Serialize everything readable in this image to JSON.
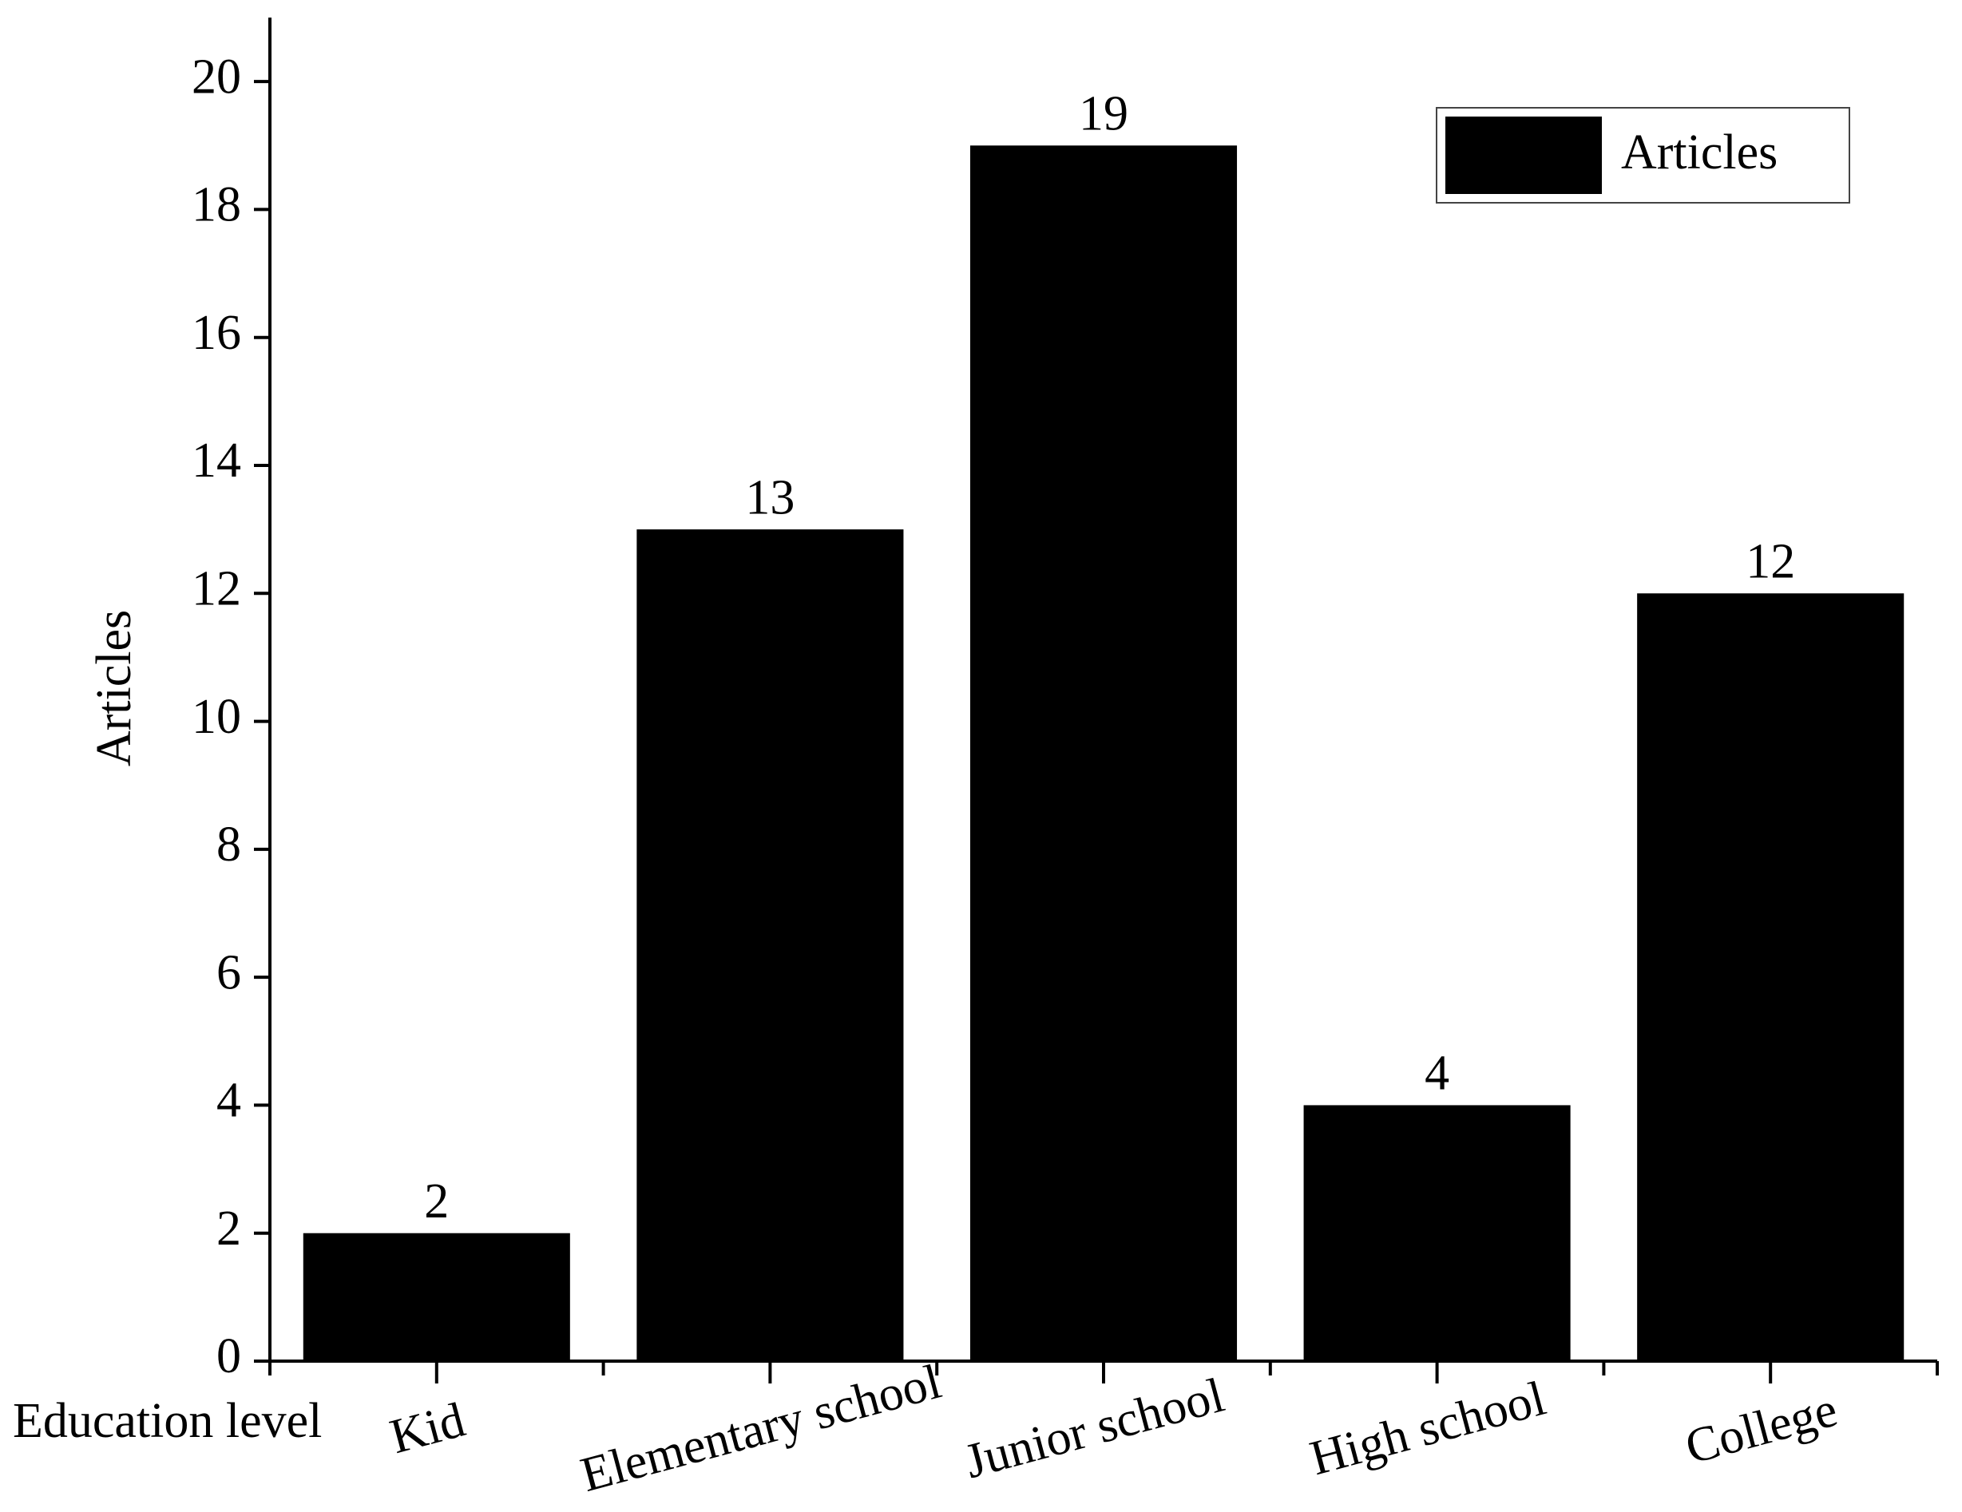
{
  "chart_data": {
    "type": "bar",
    "x_label": "Education level",
    "y_label": "Articles",
    "categories": [
      "Kid",
      "Elementary school",
      "Junior school",
      "High school",
      "College"
    ],
    "series": [
      {
        "name": "Articles",
        "color": "#000000",
        "values": [
          2,
          13,
          19,
          4,
          12
        ]
      }
    ],
    "ylim": [
      0,
      21
    ],
    "yticks": [
      0,
      2,
      4,
      6,
      8,
      10,
      12,
      14,
      16,
      18,
      20
    ],
    "grid": false,
    "legend": "top-right",
    "data_labels": true
  }
}
